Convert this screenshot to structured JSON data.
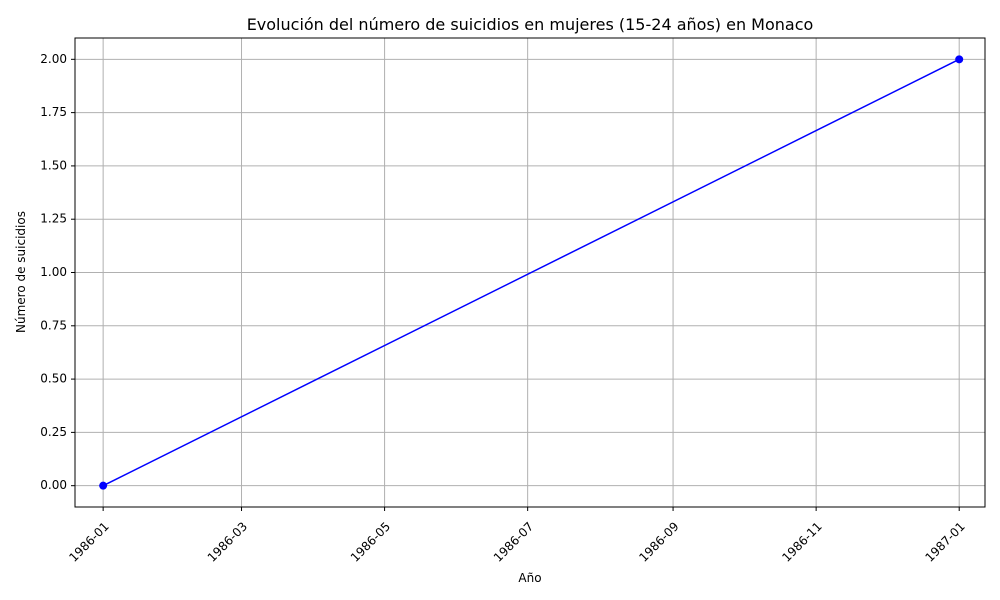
{
  "chart_data": {
    "type": "line",
    "title": "Evolución del número de suicidios en mujeres (15-24 años) en Monaco",
    "xlabel": "Año",
    "ylabel": "Número de suicidios",
    "x_ticks": [
      "1986-01",
      "1986-03",
      "1986-05",
      "1986-07",
      "1986-09",
      "1986-11",
      "1987-01"
    ],
    "y_ticks": [
      "0.00",
      "0.25",
      "0.50",
      "0.75",
      "1.00",
      "1.25",
      "1.50",
      "1.75",
      "2.00"
    ],
    "xlim": [
      "1985-12-20",
      "1987-01-12"
    ],
    "ylim": [
      -0.1,
      2.1
    ],
    "grid": true,
    "series": [
      {
        "x": [
          "1986-01-01",
          "1987-01-01"
        ],
        "values": [
          0,
          2
        ],
        "color": "#0000ff",
        "marker": "circle"
      }
    ]
  }
}
